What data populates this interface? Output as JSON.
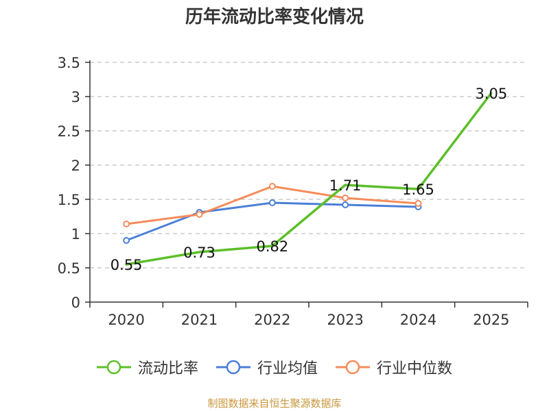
{
  "chart_data": {
    "type": "line",
    "title": "历年流动比率变化情况",
    "categories": [
      "2020",
      "2021",
      "2022",
      "2023",
      "2024",
      "2025"
    ],
    "ylim": [
      0,
      3.5
    ],
    "yticks": [
      "0",
      "0.5",
      "1",
      "1.5",
      "2",
      "2.5",
      "3",
      "3.5"
    ],
    "ytick_values": [
      0,
      0.5,
      1,
      1.5,
      2,
      2.5,
      3,
      3.5
    ],
    "grid": true,
    "legend_position": "bottom",
    "series": [
      {
        "name": "流动比率",
        "color": "#5cbf2a",
        "values": [
          0.55,
          0.73,
          0.82,
          1.71,
          1.65,
          3.05
        ],
        "labels": [
          "0.55",
          "0.73",
          "0.82",
          "1.71",
          "1.65",
          "3.05"
        ],
        "markers": false
      },
      {
        "name": "行业均值",
        "color": "#4a7fd6",
        "values": [
          0.9,
          1.31,
          1.45,
          1.42,
          1.39,
          null
        ],
        "markers": true
      },
      {
        "name": "行业中位数",
        "color": "#f58c5a",
        "values": [
          1.14,
          1.28,
          1.69,
          1.52,
          1.44,
          null
        ],
        "markers": true
      }
    ],
    "source": "制图数据来自恒生聚源数据库"
  }
}
